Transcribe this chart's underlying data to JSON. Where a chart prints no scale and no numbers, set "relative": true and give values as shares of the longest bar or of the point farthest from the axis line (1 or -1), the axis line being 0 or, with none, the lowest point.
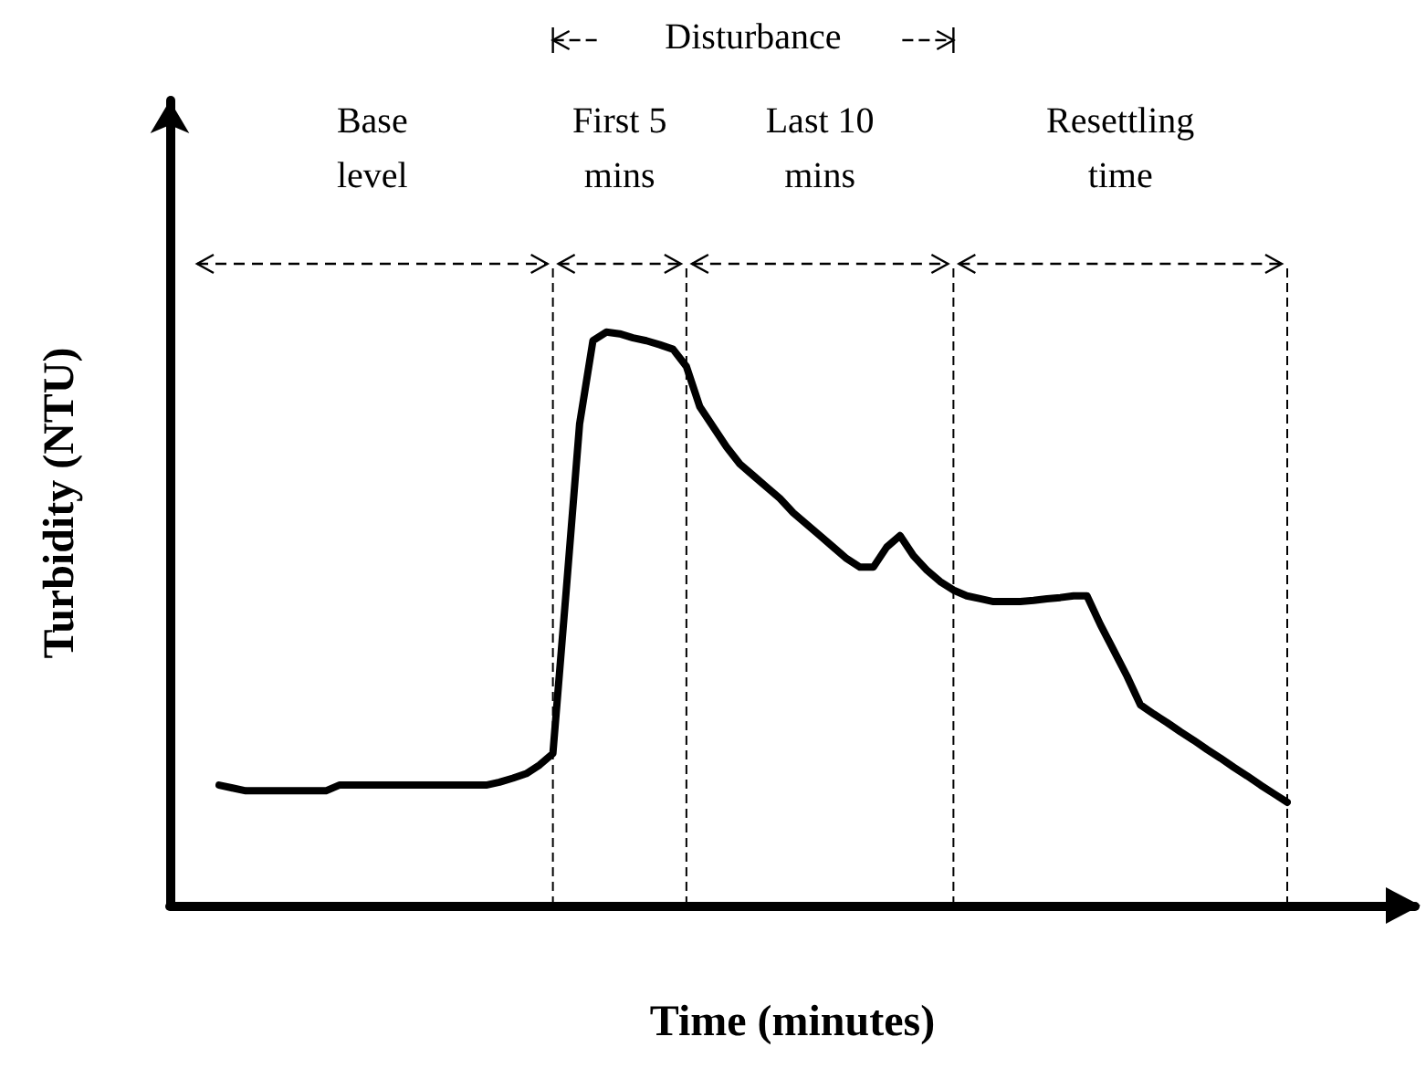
{
  "chart_data": {
    "type": "line",
    "relative": true,
    "xlabel": "Time (minutes)",
    "ylabel": "Turbidity (NTU)",
    "color": "#000000",
    "marker": "none",
    "line_style": "solid",
    "grid": "x",
    "categories": [
      null,
      null,
      null,
      null,
      null,
      null,
      null,
      null,
      null,
      null,
      null,
      null,
      null,
      null,
      null,
      null,
      null,
      null,
      null,
      null,
      null,
      null,
      null,
      null,
      null,
      null,
      null,
      null,
      null,
      null,
      null,
      null,
      null,
      null,
      null,
      null,
      null,
      null,
      null,
      null,
      null,
      null,
      null,
      null,
      null,
      null,
      null,
      null,
      null,
      null,
      null,
      null,
      null,
      null,
      null,
      null,
      null,
      null,
      null,
      null,
      null,
      null,
      null,
      null,
      null,
      null,
      null,
      null,
      null,
      null,
      null,
      null,
      null,
      null,
      null,
      null,
      null,
      null,
      null,
      null,
      null
    ],
    "values": [
      0.21,
      0.205,
      0.2,
      0.2,
      0.2,
      0.2,
      0.2,
      0.2,
      0.2,
      0.21,
      0.21,
      0.21,
      0.21,
      0.21,
      0.21,
      0.21,
      0.21,
      0.21,
      0.21,
      0.21,
      0.21,
      0.215,
      0.222,
      0.23,
      0.245,
      0.265,
      0.55,
      0.84,
      0.985,
      1.0,
      0.997,
      0.99,
      0.985,
      0.978,
      0.97,
      0.94,
      0.87,
      0.835,
      0.8,
      0.77,
      0.75,
      0.73,
      0.71,
      0.685,
      0.665,
      0.645,
      0.625,
      0.605,
      0.59,
      0.59,
      0.625,
      0.645,
      0.61,
      0.585,
      0.565,
      0.55,
      0.54,
      0.535,
      0.53,
      0.53,
      0.53,
      0.532,
      0.535,
      0.537,
      0.54,
      0.54,
      0.49,
      0.445,
      0.4,
      0.35,
      0.334,
      0.319,
      0.303,
      0.288,
      0.272,
      0.257,
      0.241,
      0.226,
      0.21,
      0.195,
      0.18
    ],
    "annotations": [
      "Disturbance",
      "Base level",
      "First 5 mins",
      "Last 10 mins",
      "Resettling time"
    ]
  }
}
